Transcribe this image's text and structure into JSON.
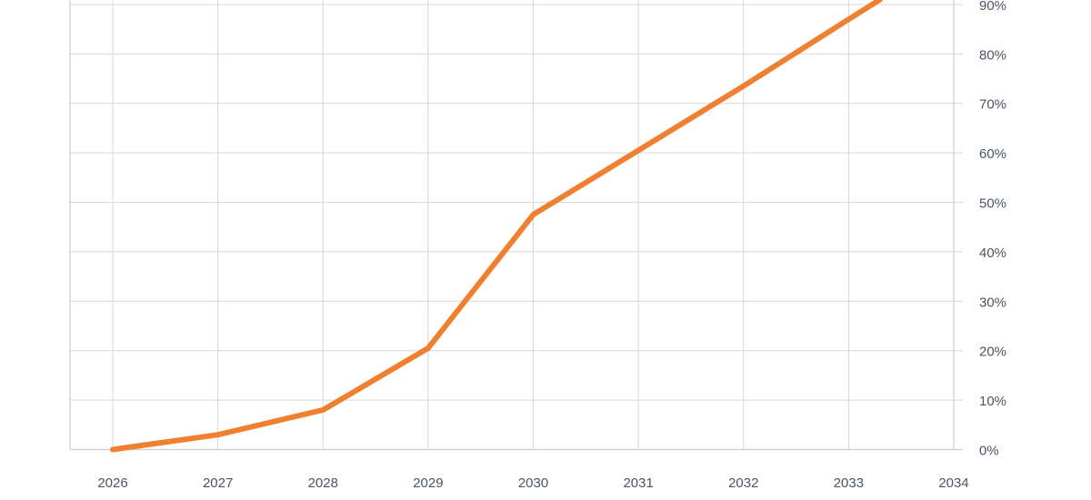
{
  "chart_data": {
    "type": "line",
    "title": "",
    "xlabel": "",
    "ylabel": "",
    "x": [
      2026,
      2027,
      2028,
      2029,
      2030,
      2031,
      2032,
      2033,
      2034
    ],
    "x_tick_labels": [
      "2026",
      "2027",
      "2028",
      "2029",
      "2030",
      "2031",
      "2032",
      "2033",
      "2034"
    ],
    "xlim": [
      2026,
      2034
    ],
    "y_ticks": [
      0,
      10,
      20,
      30,
      40,
      50,
      60,
      70,
      80,
      90
    ],
    "y_tick_labels": [
      "0%",
      "10%",
      "20%",
      "30%",
      "40%",
      "50%",
      "60%",
      "70%",
      "80%",
      "90%"
    ],
    "ylim": [
      0,
      91
    ],
    "y_axis_side": "right",
    "grid": true,
    "legend": "none",
    "series": [
      {
        "color": "#f08030",
        "points": [
          {
            "x": 2026,
            "y": 0
          },
          {
            "x": 2027,
            "y": 3
          },
          {
            "x": 2028,
            "y": 8
          },
          {
            "x": 2029,
            "y": 20.5
          },
          {
            "x": 2030,
            "y": 47.5
          },
          {
            "x": 2031,
            "y": 60.5
          },
          {
            "x": 2032,
            "y": 73.5
          },
          {
            "x": 2033,
            "y": 87
          },
          {
            "x": 2033.3,
            "y": 91
          }
        ]
      }
    ]
  }
}
